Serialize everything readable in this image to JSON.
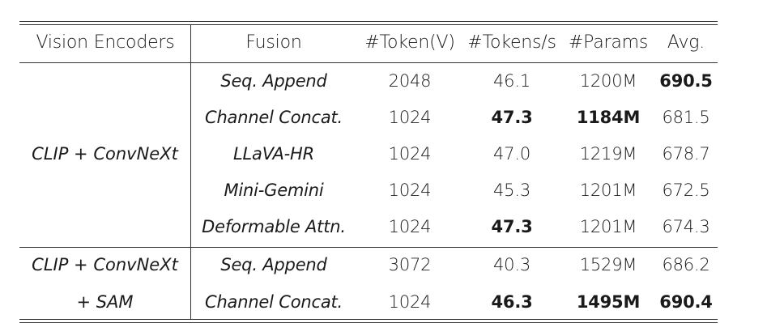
{
  "table": {
    "headers": [
      "Vision Encoders",
      "Fusion",
      "#Token(V)",
      "#Tokens/s",
      "#Params",
      "Avg."
    ],
    "groups": [
      {
        "encoder_lines": [
          "CLIP + ConvNeXt"
        ],
        "rows": [
          {
            "fusion": "Seq. Append",
            "tokens_v": "2048",
            "tokens_per_s": "46.1",
            "params": "1200M",
            "avg": "690.5",
            "bold": [
              "avg"
            ]
          },
          {
            "fusion": "Channel Concat.",
            "tokens_v": "1024",
            "tokens_per_s": "47.3",
            "params": "1184M",
            "avg": "681.5",
            "bold": [
              "tokens_per_s",
              "params"
            ]
          },
          {
            "fusion": "LLaVA-HR",
            "tokens_v": "1024",
            "tokens_per_s": "47.0",
            "params": "1219M",
            "avg": "678.7",
            "bold": []
          },
          {
            "fusion": "Mini-Gemini",
            "tokens_v": "1024",
            "tokens_per_s": "45.3",
            "params": "1201M",
            "avg": "672.5",
            "bold": []
          },
          {
            "fusion": "Deformable Attn.",
            "tokens_v": "1024",
            "tokens_per_s": "47.3",
            "params": "1201M",
            "avg": "674.3",
            "bold": [
              "tokens_per_s"
            ]
          }
        ]
      },
      {
        "encoder_lines": [
          "CLIP + ConvNeXt",
          "+ SAM"
        ],
        "rows": [
          {
            "fusion": "Seq. Append",
            "tokens_v": "3072",
            "tokens_per_s": "40.3",
            "params": "1529M",
            "avg": "686.2",
            "bold": []
          },
          {
            "fusion": "Channel Concat.",
            "tokens_v": "1024",
            "tokens_per_s": "46.3",
            "params": "1495M",
            "avg": "690.4",
            "bold": [
              "tokens_per_s",
              "params",
              "avg"
            ]
          }
        ]
      }
    ]
  }
}
